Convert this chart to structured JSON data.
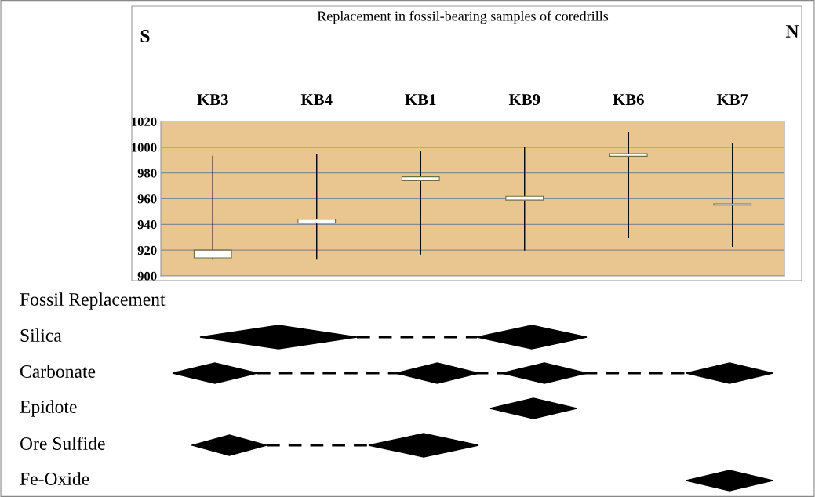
{
  "chart_data": [
    {
      "type": "candlestick",
      "title": "Replacement in fossil-bearing samples of coredrills",
      "categories": [
        "KB3",
        "KB4",
        "KB1",
        "KB9",
        "KB6",
        "KB7"
      ],
      "ohlc": [
        [
          914,
          993,
          913,
          920
        ],
        [
          941,
          994,
          913,
          944
        ],
        [
          974,
          997,
          917,
          977
        ],
        [
          959,
          1000,
          920,
          962
        ],
        [
          993,
          1011,
          930,
          995
        ],
        [
          955,
          1003,
          923,
          956
        ]
      ],
      "ylim": [
        900,
        1020
      ],
      "yticks": [
        900,
        920,
        940,
        960,
        980,
        1000,
        1020
      ],
      "grid": "y",
      "annotations": [
        "S",
        "N"
      ]
    },
    {
      "type": "other",
      "title": "Fossil Replacement",
      "categories": [
        "Silica",
        "Carbonate",
        "Epidote",
        "Ore Sulfide",
        "Fe-Oxide"
      ]
    }
  ]
}
